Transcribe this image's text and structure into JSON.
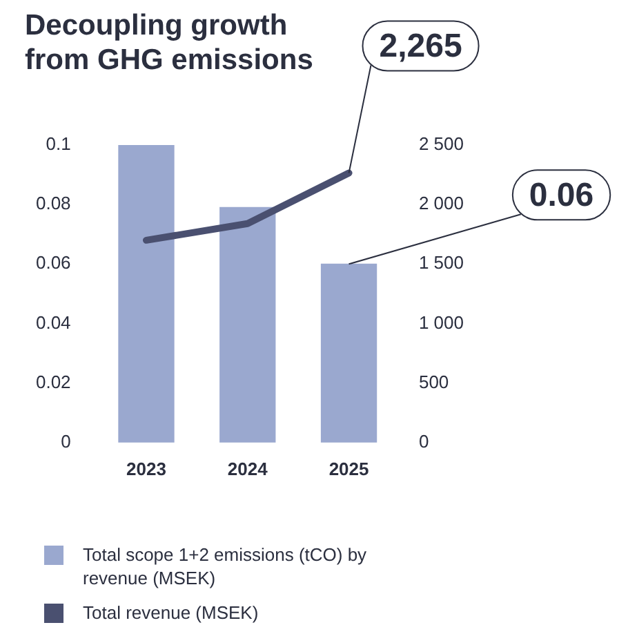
{
  "chart_data": {
    "type": "bar",
    "title": "Decoupling growth from GHG emissions",
    "categories": [
      "2023",
      "2024",
      "2025"
    ],
    "series": [
      {
        "name": "Total scope 1+2 emissions (tCO) by revenue (MSEK)",
        "color": "#9aa8cf",
        "values": [
          0.1,
          0.079,
          0.06
        ]
      },
      {
        "name": "Total revenue (MSEK)",
        "type": "line",
        "axis": "y2",
        "color": "#4a5070",
        "values": [
          1700,
          1840,
          2265
        ]
      }
    ],
    "ylim": [
      0,
      0.1
    ],
    "yticks": [
      0,
      0.02,
      0.04,
      0.06,
      0.08,
      0.1
    ],
    "y2lim": [
      0,
      2500
    ],
    "y2ticks": [
      0,
      500,
      {
        "value": 1000,
        "label": "1 000"
      },
      {
        "value": 1500,
        "label": "1 500"
      },
      {
        "value": 2000,
        "label": "2 000"
      },
      {
        "value": 2500,
        "label": "2 500"
      }
    ],
    "annotations": [
      {
        "text": "2,265",
        "x": "2025",
        "y": 0.0906
      },
      {
        "text": "0.06",
        "x": "2025",
        "y": 0.06
      }
    ],
    "legend": "bottom",
    "grid": false
  }
}
